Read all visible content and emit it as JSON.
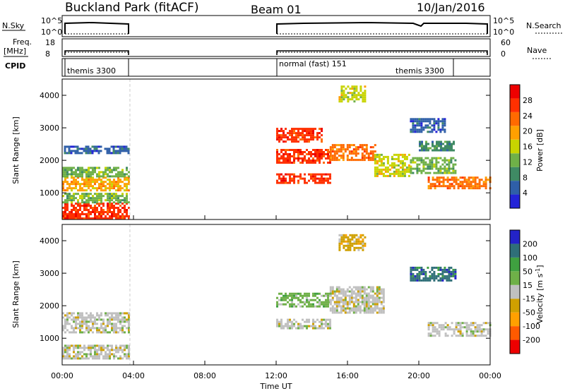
{
  "header": {
    "site": "Buckland Park (fitACF)",
    "beam": "Beam 01",
    "date": "10/Jan/2016"
  },
  "params": {
    "nsky_label": "N.Sky",
    "nsky_ticks": [
      "10^5",
      "10^0"
    ],
    "nsearch_label": "N.Search",
    "nsearch_ticks": [
      "10^5",
      "10^0"
    ],
    "freq_label": "Freq.",
    "freq_unit": "[MHz]",
    "freq_ticks": [
      "18",
      "8"
    ],
    "nave_label": "Nave",
    "nave_ticks": [
      "60",
      "0"
    ],
    "cpid_label": "CPID",
    "cpid_segments": [
      "themis 3300",
      "normal (fast) 151",
      "themis 3300"
    ]
  },
  "colors": {
    "power": [
      "#2323d8",
      "#2f5fa8",
      "#3f8a64",
      "#6fb048",
      "#c8d400",
      "#ffa000",
      "#ff6a00",
      "#ff3000",
      "#ee0000"
    ],
    "velocity": [
      "#ee0000",
      "#ff5a00",
      "#ffa000",
      "#cfa000",
      "#c0c0c0",
      "#6fb048",
      "#3fa040",
      "#2f6f78",
      "#2323c8"
    ]
  },
  "chart_data": [
    {
      "type": "heatmap",
      "title": "Power",
      "xlabel": "",
      "ylabel": "Slant Range [km]",
      "colorbar_label": "Power [dB]",
      "colorbar_ticks": [
        "4",
        "8",
        "12",
        "16",
        "20",
        "24",
        "28"
      ],
      "x_ticks": [],
      "y_ticks": [
        "1000",
        "2000",
        "3000",
        "4000"
      ],
      "xlim_hours": [
        0,
        24
      ],
      "ylim_km": [
        180,
        4500
      ],
      "data_gap_hours": [
        3.8,
        12.0
      ],
      "regions": [
        {
          "t": [
            0,
            3.8
          ],
          "km": [
            200,
            700
          ],
          "level": 7
        },
        {
          "t": [
            0,
            3.8
          ],
          "km": [
            700,
            1000
          ],
          "level": 3
        },
        {
          "t": [
            0,
            3.8
          ],
          "km": [
            1100,
            1500
          ],
          "level": 5
        },
        {
          "t": [
            0,
            3.8
          ],
          "km": [
            1500,
            1800
          ],
          "level": 3
        },
        {
          "t": [
            0.1,
            3.7
          ],
          "km": [
            2200,
            2450
          ],
          "level": 1
        },
        {
          "t": [
            12,
            15
          ],
          "km": [
            1300,
            1600
          ],
          "level": 7
        },
        {
          "t": [
            12,
            15
          ],
          "km": [
            1950,
            2350
          ],
          "level": 7
        },
        {
          "t": [
            12,
            14.5
          ],
          "km": [
            2600,
            3000
          ],
          "level": 7
        },
        {
          "t": [
            15,
            17.5
          ],
          "km": [
            2000,
            2500
          ],
          "level": 6
        },
        {
          "t": [
            17.5,
            19.5
          ],
          "km": [
            1500,
            2200
          ],
          "level": 4
        },
        {
          "t": [
            19.5,
            22
          ],
          "km": [
            1600,
            2100
          ],
          "level": 3
        },
        {
          "t": [
            20.5,
            24
          ],
          "km": [
            1150,
            1500
          ],
          "level": 6
        },
        {
          "t": [
            20,
            22
          ],
          "km": [
            2300,
            2600
          ],
          "level": 2
        },
        {
          "t": [
            19.5,
            21.5
          ],
          "km": [
            2900,
            3300
          ],
          "level": 1
        },
        {
          "t": [
            15.5,
            17
          ],
          "km": [
            3800,
            4300
          ],
          "level": 4
        }
      ]
    },
    {
      "type": "heatmap",
      "title": "Velocity",
      "xlabel": "Time UT",
      "ylabel": "Slant Range [km]",
      "colorbar_label": "Velocity [m s^-1]",
      "colorbar_ticks": [
        "200",
        "100",
        "50",
        "15",
        "-15",
        "-50",
        "-100",
        "-200"
      ],
      "x_ticks": [
        "00:00",
        "04:00",
        "08:00",
        "12:00",
        "16:00",
        "20:00",
        "00:00"
      ],
      "y_ticks": [
        "1000",
        "2000",
        "3000",
        "4000"
      ],
      "xlim_hours": [
        0,
        24
      ],
      "ylim_km": [
        180,
        4500
      ],
      "data_gap_hours": [
        3.8,
        12.0
      ],
      "regions": [
        {
          "t": [
            0,
            3.8
          ],
          "km": [
            400,
            800
          ],
          "level": 4
        },
        {
          "t": [
            0,
            3.8
          ],
          "km": [
            1200,
            1800
          ],
          "level": 4
        },
        {
          "t": [
            12,
            15
          ],
          "km": [
            1300,
            1600
          ],
          "level": 4
        },
        {
          "t": [
            12,
            15
          ],
          "km": [
            2000,
            2400
          ],
          "level": 5
        },
        {
          "t": [
            15,
            18
          ],
          "km": [
            1800,
            2600
          ],
          "level": 4
        },
        {
          "t": [
            20.5,
            24
          ],
          "km": [
            1100,
            1500
          ],
          "level": 4
        },
        {
          "t": [
            19.5,
            22
          ],
          "km": [
            2800,
            3200
          ],
          "level": 7
        },
        {
          "t": [
            15.5,
            17
          ],
          "km": [
            3700,
            4200
          ],
          "level": 3
        }
      ]
    }
  ]
}
